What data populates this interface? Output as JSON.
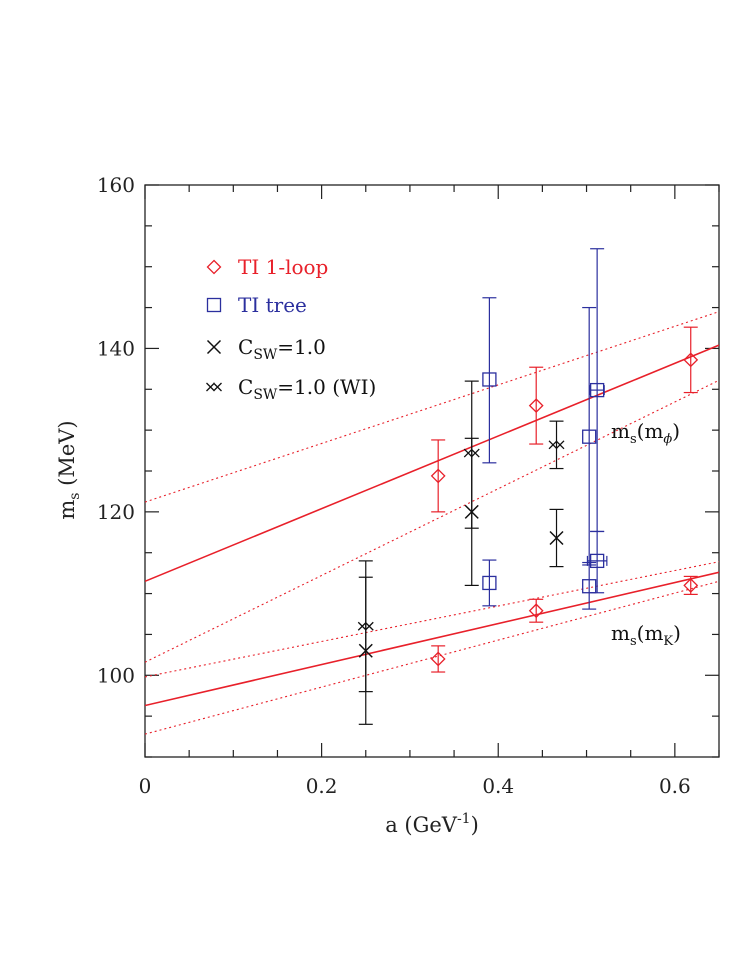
{
  "chart_data": {
    "type": "scatter",
    "title": "",
    "xlabel": "a (GeV",
    "xlabel_sup": "-1",
    "xlabel_close": ")",
    "ylabel": "m",
    "ylabel_sub": "s",
    "ylabel_unit": " (MeV)",
    "xlim": [
      0,
      0.65
    ],
    "ylim": [
      90,
      160
    ],
    "x_ticks": [
      0,
      0.2,
      0.4,
      0.6
    ],
    "x_tick_labels": [
      "0",
      "0.2",
      "0.4",
      "0.6"
    ],
    "y_ticks": [
      100,
      120,
      140,
      160
    ],
    "y_tick_labels": [
      "100",
      "120",
      "140",
      "160"
    ],
    "grid": false,
    "legend_position": "top-left",
    "series": [
      {
        "name": "TI 1-loop",
        "marker": "diamond",
        "color": "#e8202a",
        "points": [
          {
            "x": 0.332,
            "y": 124.4,
            "lo": 120.0,
            "hi": 128.8
          },
          {
            "x": 0.443,
            "y": 133.0,
            "lo": 128.3,
            "hi": 137.7
          },
          {
            "x": 0.618,
            "y": 138.6,
            "lo": 134.6,
            "hi": 142.6
          },
          {
            "x": 0.332,
            "y": 102.0,
            "lo": 100.4,
            "hi": 103.6
          },
          {
            "x": 0.443,
            "y": 107.9,
            "lo": 106.5,
            "hi": 109.3
          },
          {
            "x": 0.618,
            "y": 111.0,
            "lo": 109.9,
            "hi": 112.1
          }
        ]
      },
      {
        "name": "TI tree",
        "marker": "square",
        "color": "#2b2f9e",
        "points": [
          {
            "x": 0.39,
            "y": 136.2,
            "lo": 126.0,
            "hi": 146.2
          },
          {
            "x": 0.503,
            "y": 129.2,
            "lo": 113.5,
            "hi": 145.0
          },
          {
            "x": 0.512,
            "y": 134.9,
            "lo": 117.6,
            "hi": 152.2,
            "xerr": 0.008
          },
          {
            "x": 0.39,
            "y": 111.3,
            "lo": 108.5,
            "hi": 114.1
          },
          {
            "x": 0.503,
            "y": 110.9,
            "lo": 108.1,
            "hi": 113.8
          },
          {
            "x": 0.512,
            "y": 114.0,
            "lo": 110.1,
            "hi": 117.6,
            "xerr": 0.011
          }
        ]
      },
      {
        "name": "C",
        "name_sub": "SW",
        "name_tail": "=1.0",
        "marker": "cross",
        "color": "#111111",
        "points": [
          {
            "x": 0.25,
            "y": 103.0,
            "lo": 94.0,
            "hi": 112.0
          },
          {
            "x": 0.37,
            "y": 120.0,
            "lo": 111.0,
            "hi": 129.0
          },
          {
            "x": 0.466,
            "y": 116.8,
            "lo": 113.3,
            "hi": 120.3
          }
        ]
      },
      {
        "name": "C",
        "name_sub": "SW",
        "name_tail": "=1.0 (WI)",
        "marker": "double-cross",
        "color": "#111111",
        "points": [
          {
            "x": 0.25,
            "y": 106.0,
            "lo": 98.0,
            "hi": 114.0
          },
          {
            "x": 0.37,
            "y": 127.2,
            "lo": 118.0,
            "hi": 136.0
          },
          {
            "x": 0.466,
            "y": 128.2,
            "lo": 125.3,
            "hi": 131.1
          }
        ]
      }
    ],
    "fits": [
      {
        "label": "m_s(m_phi)",
        "color": "#e8202a",
        "line": [
          [
            0,
            111.5
          ],
          [
            0.65,
            140.4
          ]
        ],
        "upper": [
          [
            0,
            121.2
          ],
          [
            0.65,
            144.5
          ]
        ],
        "lower": [
          [
            0,
            101.6
          ],
          [
            0.65,
            136.1
          ]
        ]
      },
      {
        "label": "m_s(m_K)",
        "color": "#e8202a",
        "line": [
          [
            0,
            96.3
          ],
          [
            0.65,
            112.6
          ]
        ],
        "upper": [
          [
            0,
            99.8
          ],
          [
            0.65,
            113.9
          ]
        ],
        "lower": [
          [
            0,
            92.8
          ],
          [
            0.65,
            111.5
          ]
        ]
      }
    ],
    "annotations": {
      "phi": {
        "base": "m",
        "sub": "s",
        "open": "(m",
        "sub2": "ϕ",
        "close": ")"
      },
      "k": {
        "base": "m",
        "sub": "s",
        "open": "(m",
        "sub2": "K",
        "close": ")"
      }
    }
  }
}
